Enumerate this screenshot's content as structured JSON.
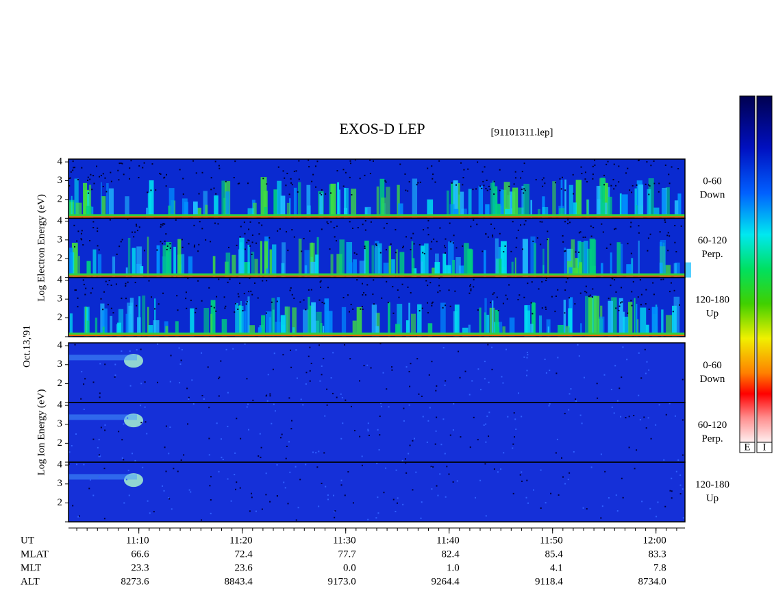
{
  "chart_data": {
    "type": "spectrogram",
    "title": "EXOS-D LEP",
    "subtitle": "[91101311.lep]",
    "date_label": "Oct.13,'91",
    "xlim": [
      3.2,
      62.8
    ],
    "xticks": [
      {
        "value": 10,
        "label": "11:10"
      },
      {
        "value": 20,
        "label": "11:20"
      },
      {
        "value": 30,
        "label": "11:30"
      },
      {
        "value": 40,
        "label": "11:40"
      },
      {
        "value": 50,
        "label": "11:50"
      },
      {
        "value": 60,
        "label": "12:00"
      }
    ],
    "ylim": [
      1,
      4.15
    ],
    "yticks": [
      2,
      3,
      4
    ],
    "groups": [
      {
        "label": "Log Electron Energy (eV)",
        "panels": [
          {
            "labels": [
              "0-60",
              "Down"
            ]
          },
          {
            "labels": [
              "60-120",
              "Perp."
            ]
          },
          {
            "labels": [
              "120-180",
              "Up"
            ]
          }
        ]
      },
      {
        "label": "Log Ion Energy (eV)",
        "panels": [
          {
            "labels": [
              "0-60",
              "Down"
            ]
          },
          {
            "labels": [
              "60-120",
              "Perp."
            ]
          },
          {
            "labels": [
              "120-180",
              "Up"
            ]
          }
        ]
      }
    ],
    "colorbar_labels": [
      "E",
      "I"
    ],
    "orbit": {
      "rows": [
        {
          "name": "UT"
        },
        {
          "name": "MLAT",
          "values": [
            "66.6",
            "72.4",
            "77.7",
            "82.4",
            "85.4",
            "83.3"
          ]
        },
        {
          "name": "MLT",
          "values": [
            "23.3",
            "23.6",
            "0.0",
            "1.0",
            "4.1",
            "7.8"
          ]
        },
        {
          "name": "ALT",
          "values": [
            "8273.6",
            "8843.4",
            "9173.0",
            "9264.4",
            "9118.4",
            "8734.0"
          ]
        }
      ]
    }
  }
}
